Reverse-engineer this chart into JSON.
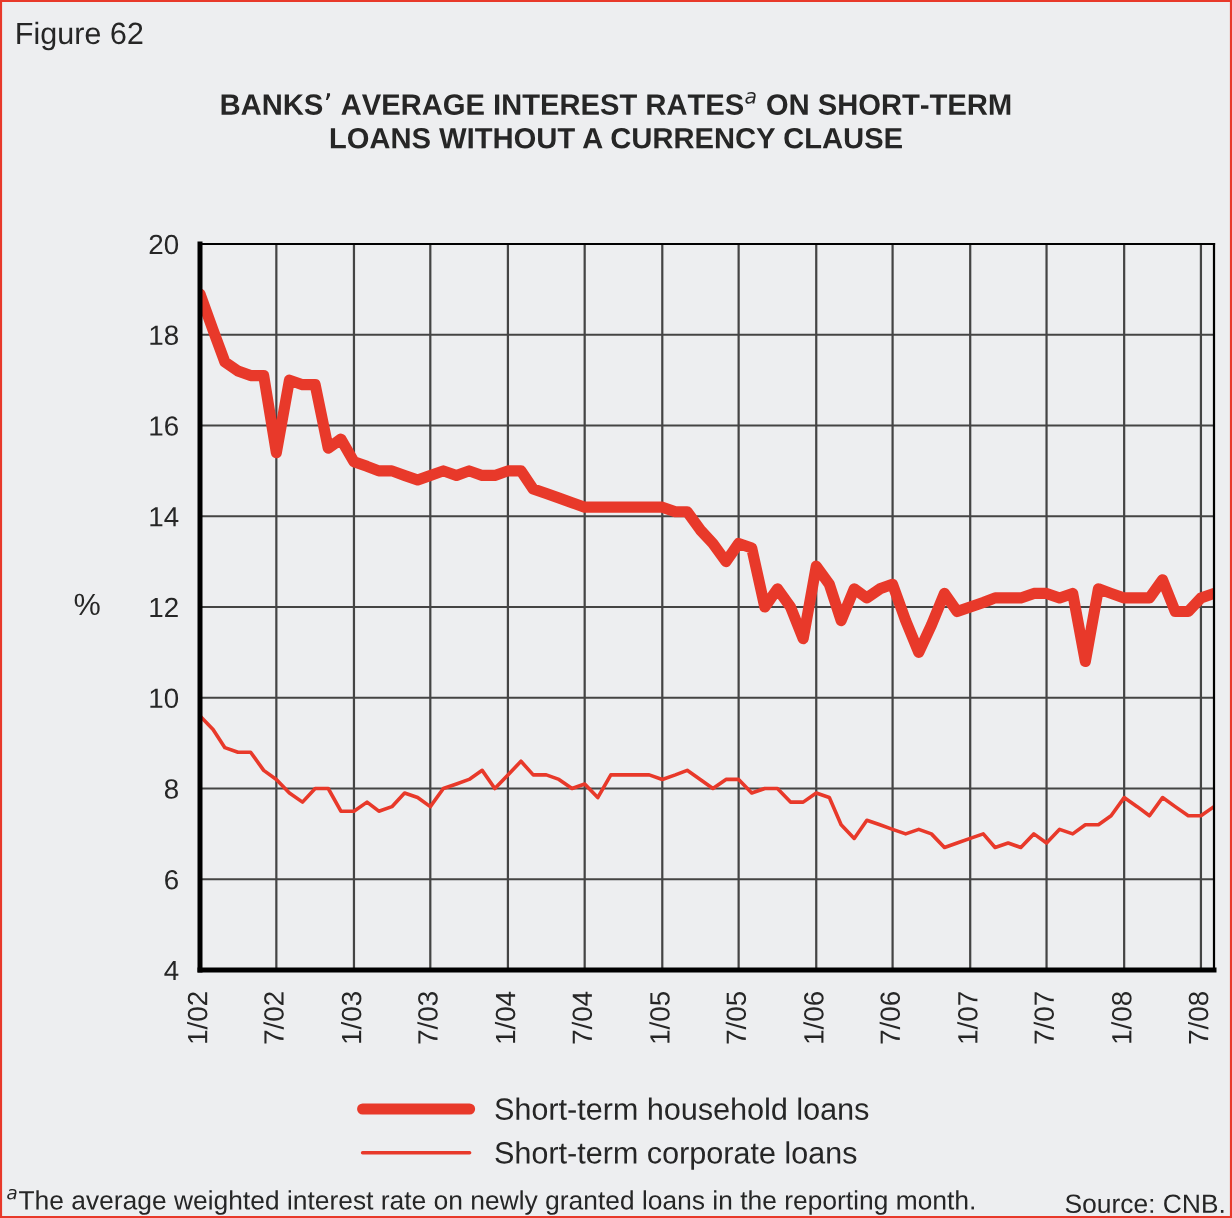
{
  "chart_data": {
    "type": "line",
    "title": "BANKS’ AVERAGE INTEREST RATES$^{a}$ ON SHORT-TERM\nLOANS WITHOUT A CURRENCY CLAUSE",
    "ylabel": "%",
    "x": [
      "2002-01",
      "2002-02",
      "2002-03",
      "2002-04",
      "2002-05",
      "2002-06",
      "2002-07",
      "2002-08",
      "2002-09",
      "2002-10",
      "2002-11",
      "2002-12",
      "2003-01",
      "2003-02",
      "2003-03",
      "2003-04",
      "2003-05",
      "2003-06",
      "2003-07",
      "2003-08",
      "2003-09",
      "2003-10",
      "2003-11",
      "2003-12",
      "2004-01",
      "2004-02",
      "2004-03",
      "2004-04",
      "2004-05",
      "2004-06",
      "2004-07",
      "2004-08",
      "2004-09",
      "2004-10",
      "2004-11",
      "2004-12",
      "2005-01",
      "2005-02",
      "2005-03",
      "2005-04",
      "2005-05",
      "2005-06",
      "2005-07",
      "2005-08",
      "2005-09",
      "2005-10",
      "2005-11",
      "2005-12",
      "2006-01",
      "2006-02",
      "2006-03",
      "2006-04",
      "2006-05",
      "2006-06",
      "2006-07",
      "2006-08",
      "2006-09",
      "2006-10",
      "2006-11",
      "2006-12",
      "2007-01",
      "2007-02",
      "2007-03",
      "2007-04",
      "2007-05",
      "2007-06",
      "2007-07",
      "2007-08",
      "2007-09",
      "2007-10",
      "2007-11",
      "2007-12",
      "2008-01",
      "2008-02",
      "2008-03",
      "2008-04",
      "2008-05",
      "2008-06",
      "2008-07",
      "2008-08"
    ],
    "series": [
      {
        "name": "Short-term household loans",
        "color": "#e8392a",
        "line_style": "solid",
        "values": [
          18.9,
          18.1,
          17.4,
          17.2,
          17.1,
          17.1,
          15.4,
          17.0,
          16.9,
          16.9,
          15.5,
          15.7,
          15.2,
          15.1,
          15.0,
          15.0,
          14.9,
          14.8,
          14.9,
          15.0,
          14.9,
          15.0,
          14.9,
          14.9,
          15.0,
          15.0,
          14.6,
          14.5,
          14.4,
          14.3,
          14.2,
          14.2,
          14.2,
          14.2,
          14.2,
          14.2,
          14.2,
          14.1,
          14.1,
          13.7,
          13.4,
          13.0,
          13.4,
          13.3,
          12.0,
          12.4,
          12.0,
          11.3,
          12.9,
          12.5,
          11.7,
          12.4,
          12.2,
          12.4,
          12.5,
          11.7,
          11.0,
          11.6,
          12.3,
          11.9,
          12.0,
          12.1,
          12.2,
          12.2,
          12.2,
          12.3,
          12.3,
          12.2,
          12.3,
          10.8,
          12.4,
          12.3,
          12.2,
          12.2,
          12.2,
          12.6,
          11.9,
          11.9,
          12.2,
          12.3
        ]
      },
      {
        "name": "Short-term corporate loans",
        "color": "#e8392a",
        "line_style": "solid",
        "values": [
          9.6,
          9.3,
          8.9,
          8.8,
          8.8,
          8.4,
          8.2,
          7.9,
          7.7,
          8.0,
          8.0,
          7.5,
          7.5,
          7.7,
          7.5,
          7.6,
          7.9,
          7.8,
          7.6,
          8.0,
          8.1,
          8.2,
          8.4,
          8.0,
          8.3,
          8.6,
          8.3,
          8.3,
          8.2,
          8.0,
          8.1,
          7.8,
          8.3,
          8.3,
          8.3,
          8.3,
          8.2,
          8.3,
          8.4,
          8.2,
          8.0,
          8.2,
          8.2,
          7.9,
          8.0,
          8.0,
          7.7,
          7.7,
          7.9,
          7.8,
          7.2,
          6.9,
          7.3,
          7.2,
          7.1,
          7.0,
          7.1,
          7.0,
          6.7,
          6.8,
          6.9,
          7.0,
          6.7,
          6.8,
          6.7,
          7.0,
          6.8,
          7.1,
          7.0,
          7.2,
          7.2,
          7.4,
          7.8,
          7.6,
          7.4,
          7.8,
          7.6,
          7.4,
          7.4,
          7.6
        ]
      }
    ],
    "ylim": [
      4,
      20
    ],
    "yticks": [
      4,
      6,
      8,
      10,
      12,
      14,
      16,
      18,
      20
    ],
    "xlim": [
      "2002-01",
      "2008-08"
    ],
    "xticks": [
      {
        "value": "2002-01",
        "label": "1/02"
      },
      {
        "value": "2002-07",
        "label": "7/02"
      },
      {
        "value": "2003-01",
        "label": "1/03"
      },
      {
        "value": "2003-07",
        "label": "7/03"
      },
      {
        "value": "2004-01",
        "label": "1/04"
      },
      {
        "value": "2004-07",
        "label": "7/04"
      },
      {
        "value": "2005-01",
        "label": "1/05"
      },
      {
        "value": "2005-07",
        "label": "7/05"
      },
      {
        "value": "2006-01",
        "label": "1/06"
      },
      {
        "value": "2006-07",
        "label": "7/06"
      },
      {
        "value": "2007-01",
        "label": "1/07"
      },
      {
        "value": "2007-07",
        "label": "7/07"
      },
      {
        "value": "2008-01",
        "label": "1/08"
      },
      {
        "value": "2008-07",
        "label": "7/08"
      }
    ],
    "grid": true,
    "legend": "bottom",
    "annotations": [
      "Figure 62",
      "$^{a}$The average weighted interest rate on newly granted loans in the reporting month.",
      "Source: CNB."
    ]
  }
}
